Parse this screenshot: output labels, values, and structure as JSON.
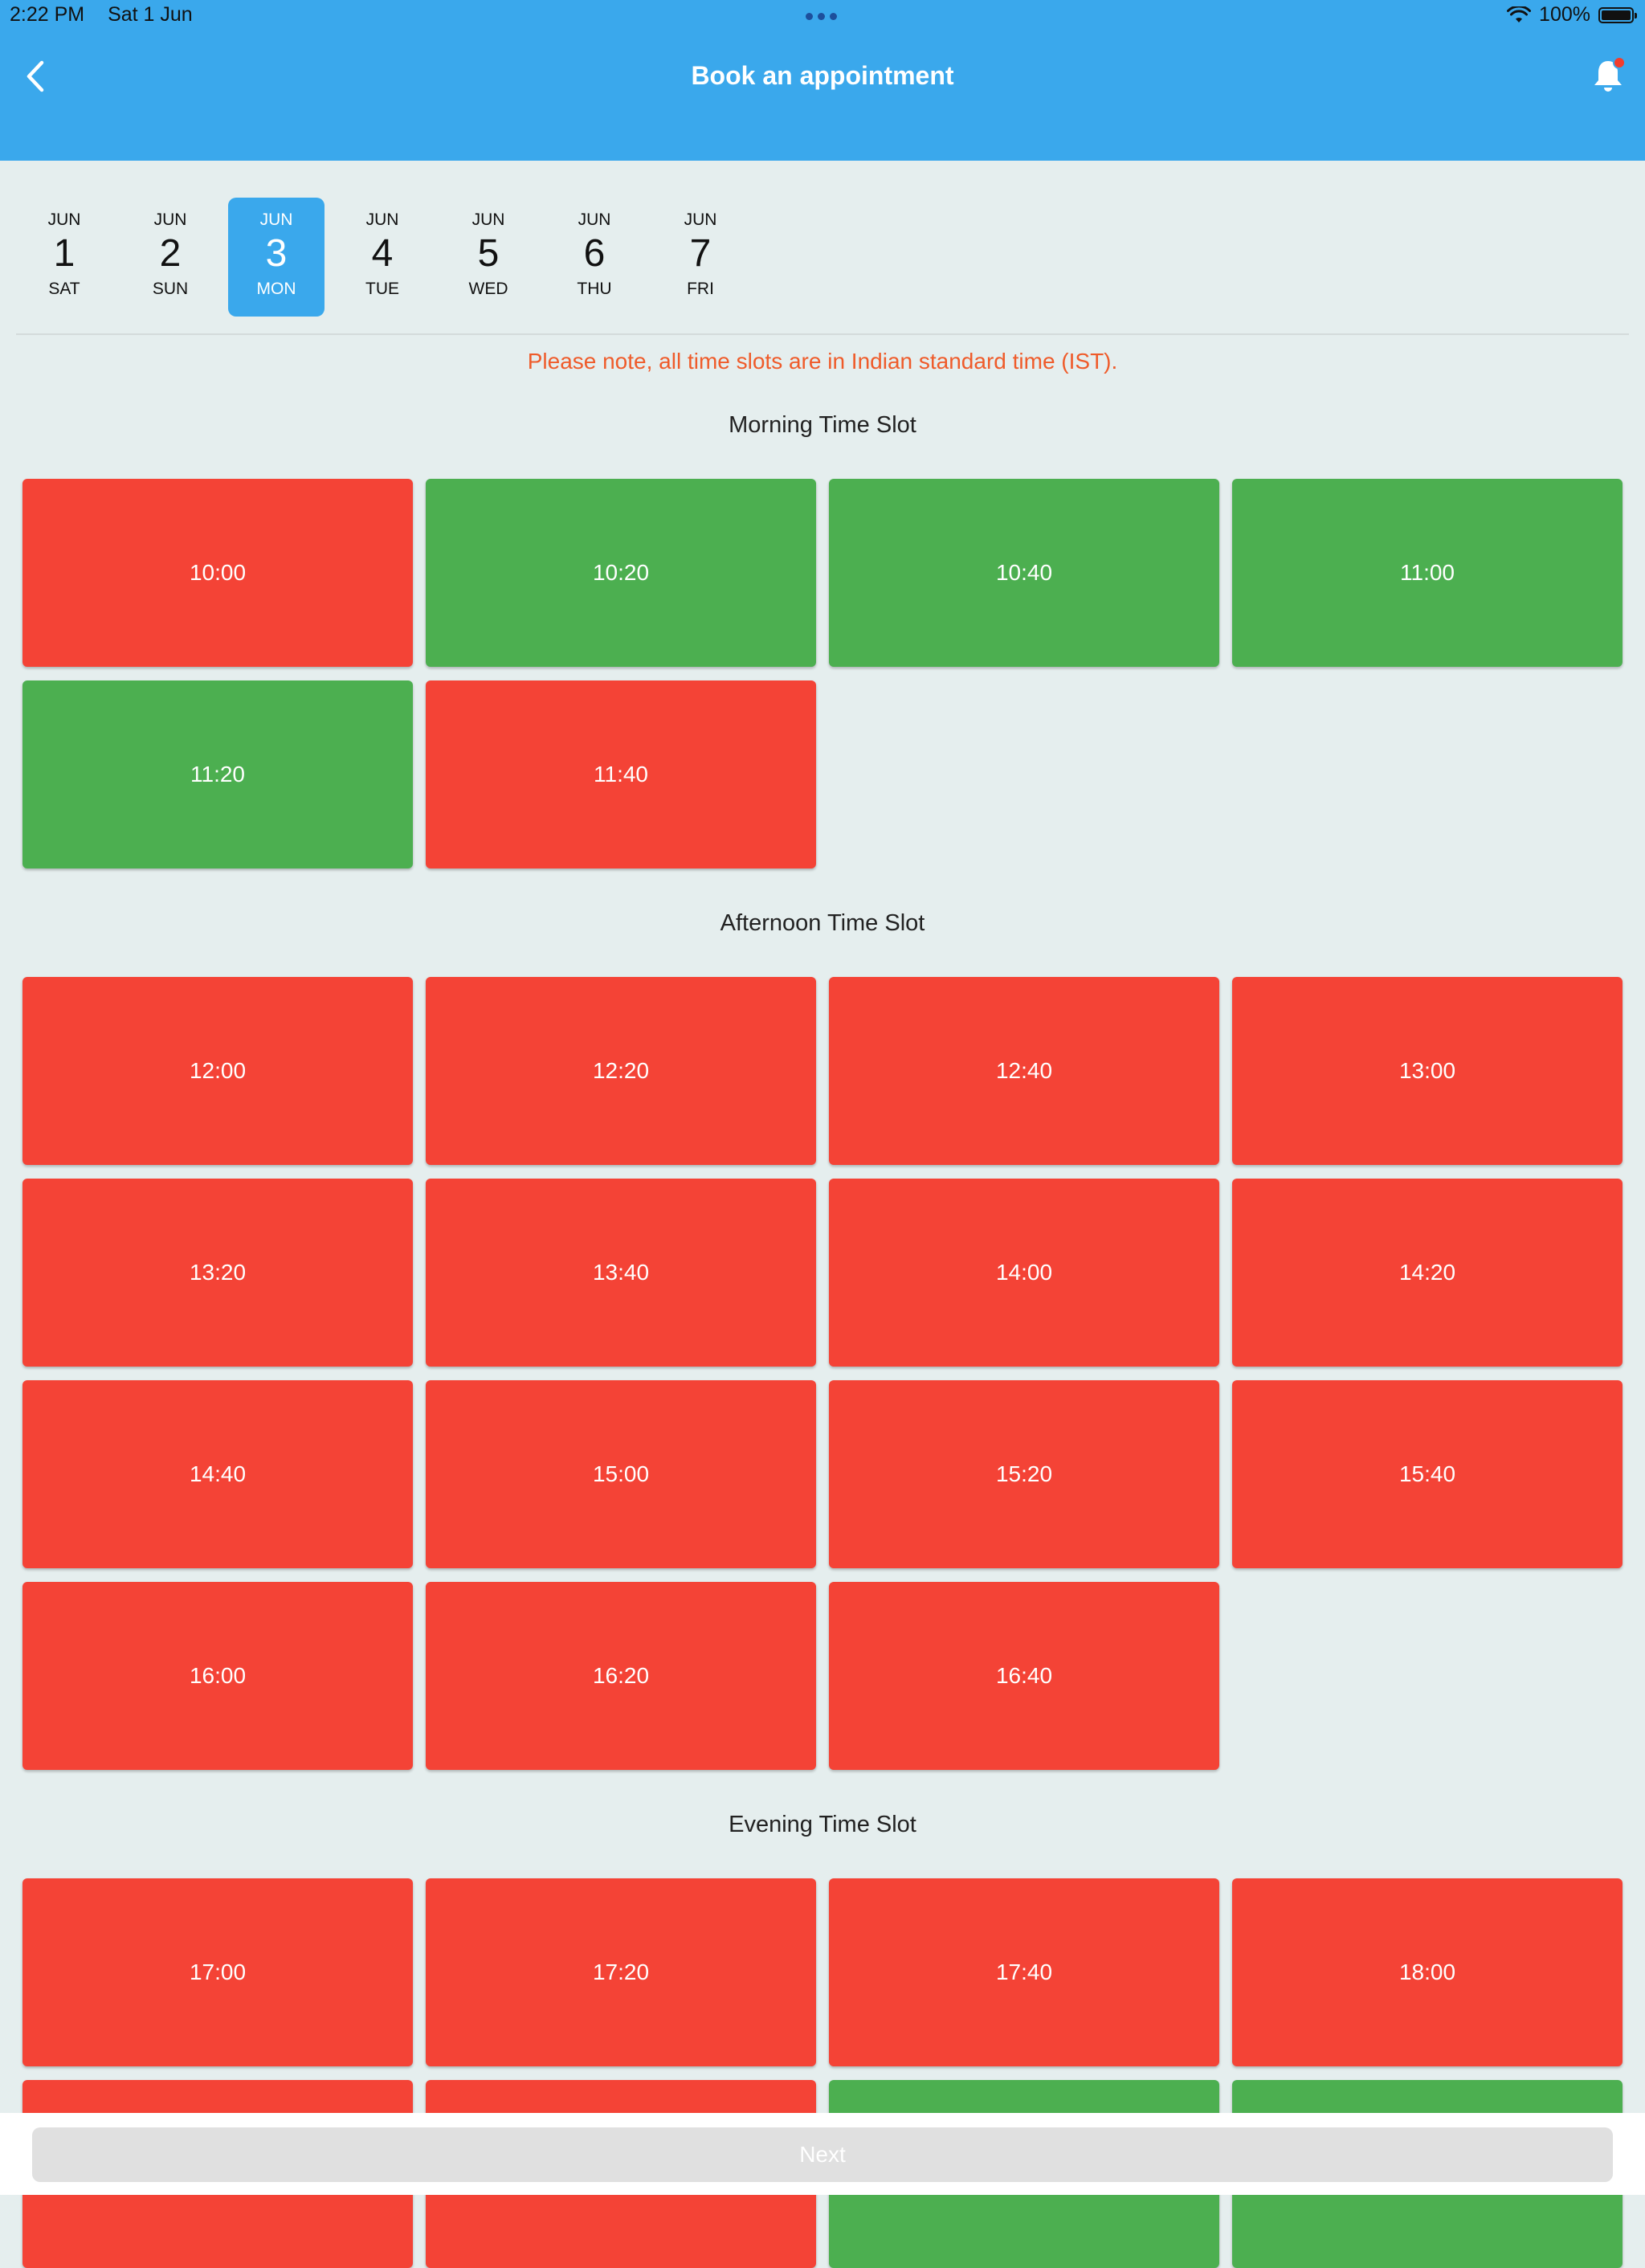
{
  "status_bar": {
    "time": "2:22 PM",
    "date": "Sat 1 Jun",
    "battery": "100%"
  },
  "header": {
    "title": "Book an appointment"
  },
  "dates": [
    {
      "month": "JUN",
      "day": "1",
      "weekday": "SAT",
      "selected": false
    },
    {
      "month": "JUN",
      "day": "2",
      "weekday": "SUN",
      "selected": false
    },
    {
      "month": "JUN",
      "day": "3",
      "weekday": "MON",
      "selected": true
    },
    {
      "month": "JUN",
      "day": "4",
      "weekday": "TUE",
      "selected": false
    },
    {
      "month": "JUN",
      "day": "5",
      "weekday": "WED",
      "selected": false
    },
    {
      "month": "JUN",
      "day": "6",
      "weekday": "THU",
      "selected": false
    },
    {
      "month": "JUN",
      "day": "7",
      "weekday": "FRI",
      "selected": false
    }
  ],
  "note": "Please note, all time slots are in Indian standard time (IST).",
  "sections": [
    {
      "title": "Morning Time Slot",
      "slots": [
        {
          "time": "10:00",
          "status": "unavailable"
        },
        {
          "time": "10:20",
          "status": "available"
        },
        {
          "time": "10:40",
          "status": "available"
        },
        {
          "time": "11:00",
          "status": "available"
        },
        {
          "time": "11:20",
          "status": "available"
        },
        {
          "time": "11:40",
          "status": "unavailable"
        }
      ]
    },
    {
      "title": "Afternoon Time Slot",
      "slots": [
        {
          "time": "12:00",
          "status": "unavailable"
        },
        {
          "time": "12:20",
          "status": "unavailable"
        },
        {
          "time": "12:40",
          "status": "unavailable"
        },
        {
          "time": "13:00",
          "status": "unavailable"
        },
        {
          "time": "13:20",
          "status": "unavailable"
        },
        {
          "time": "13:40",
          "status": "unavailable"
        },
        {
          "time": "14:00",
          "status": "unavailable"
        },
        {
          "time": "14:20",
          "status": "unavailable"
        },
        {
          "time": "14:40",
          "status": "unavailable"
        },
        {
          "time": "15:00",
          "status": "unavailable"
        },
        {
          "time": "15:20",
          "status": "unavailable"
        },
        {
          "time": "15:40",
          "status": "unavailable"
        },
        {
          "time": "16:00",
          "status": "unavailable"
        },
        {
          "time": "16:20",
          "status": "unavailable"
        },
        {
          "time": "16:40",
          "status": "unavailable"
        }
      ]
    },
    {
      "title": "Evening Time Slot",
      "slots": [
        {
          "time": "17:00",
          "status": "unavailable"
        },
        {
          "time": "17:20",
          "status": "unavailable"
        },
        {
          "time": "17:40",
          "status": "unavailable"
        },
        {
          "time": "18:00",
          "status": "unavailable"
        },
        {
          "time": "",
          "status": "unavailable"
        },
        {
          "time": "",
          "status": "unavailable"
        },
        {
          "time": "",
          "status": "available"
        },
        {
          "time": "",
          "status": "available"
        }
      ]
    }
  ],
  "footer": {
    "next_label": "Next"
  },
  "colors": {
    "header": "#3aa8ec",
    "available": "#4caf50",
    "unavailable": "#f44336",
    "note": "#ef5b2a"
  },
  "icons": {
    "back": "chevron-left-icon",
    "notifications": "bell-icon",
    "wifi": "wifi-icon",
    "battery": "battery-icon"
  }
}
